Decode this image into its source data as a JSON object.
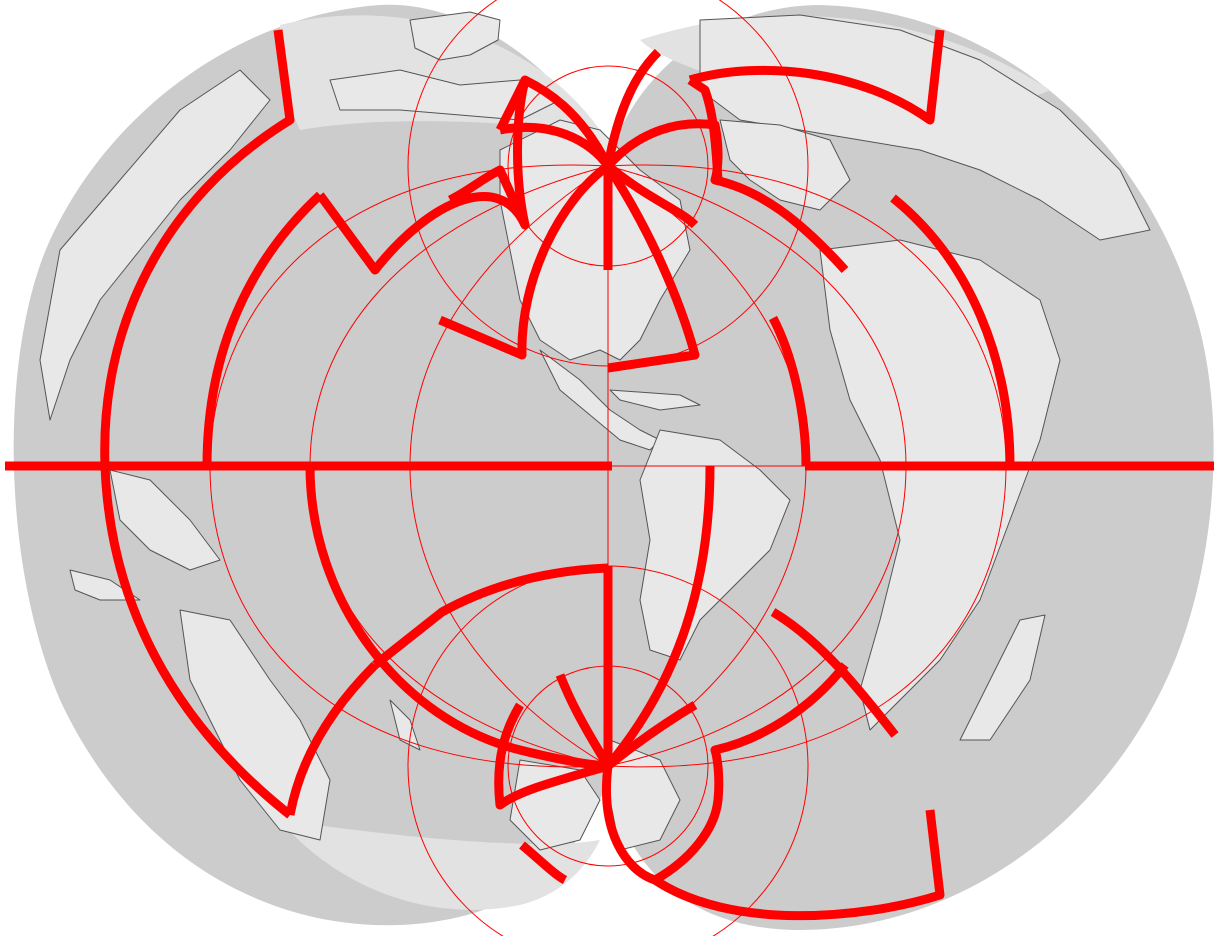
{
  "figure": {
    "description_type": "interrupted world map projection with graticule and interruption cuts",
    "colors": {
      "ocean": "#cccccc",
      "ocean_light": "#e2e2e2",
      "land": "#e8e8e8",
      "land_outline": "#555555",
      "graticule": "#ff0000",
      "interruption": "#ff0000",
      "background": "#ffffff"
    },
    "layers": [
      "ocean-fill",
      "landmasses",
      "graticule",
      "interruption-lines"
    ]
  }
}
